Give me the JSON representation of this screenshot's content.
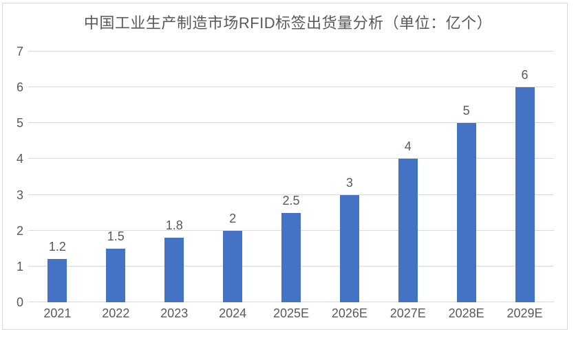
{
  "chart": {
    "bar_color": "#4472C4",
    "grid_color": "#D9D9D9",
    "axis_line_color": "#D9D9D9",
    "text_color": "#595959",
    "frame_border_color": "#D9D9D9",
    "background": "#FFFFFF"
  },
  "chart_data": {
    "type": "bar",
    "title": "中国工业生产制造市场RFID标签出货量分析（单位：亿个）",
    "categories": [
      "2021",
      "2022",
      "2023",
      "2024",
      "2025E",
      "2026E",
      "2027E",
      "2028E",
      "2029E"
    ],
    "values": [
      1.2,
      1.5,
      1.8,
      2,
      2.5,
      3,
      4,
      5,
      6
    ],
    "data_labels": [
      "1.2",
      "1.5",
      "1.8",
      "2",
      "2.5",
      "3",
      "4",
      "5",
      "6"
    ],
    "xlabel": "",
    "ylabel": "",
    "ylim": [
      0,
      7
    ],
    "y_ticks": [
      "0",
      "1",
      "2",
      "3",
      "4",
      "5",
      "6",
      "7"
    ],
    "grid": true,
    "legend_position": "none"
  }
}
